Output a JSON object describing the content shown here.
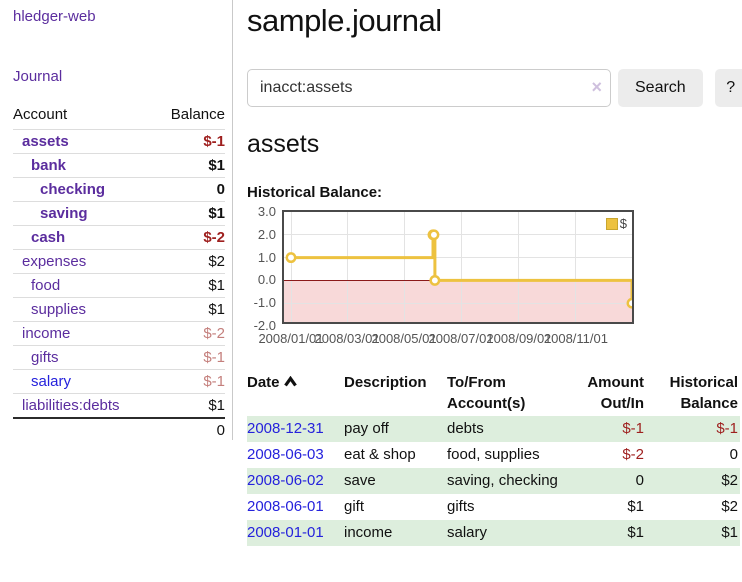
{
  "sidebar": {
    "app_title": "hledger-web",
    "nav_journal": "Journal",
    "accounts_table": {
      "headers": {
        "account": "Account",
        "balance": "Balance"
      },
      "accounts": [
        {
          "name": "assets",
          "balance": "$-1",
          "indent": 1,
          "bold": true,
          "balance_color": "negative"
        },
        {
          "name": "bank",
          "balance": "$1",
          "indent": 2,
          "bold": true,
          "balance_color": "normal"
        },
        {
          "name": "checking",
          "balance": "0",
          "indent": 3,
          "bold": true,
          "balance_color": "normal"
        },
        {
          "name": "saving",
          "balance": "$1",
          "indent": 3,
          "bold": true,
          "balance_color": "normal"
        },
        {
          "name": "cash",
          "balance": "$-2",
          "indent": 2,
          "bold": true,
          "balance_color": "negative"
        },
        {
          "name": "expenses",
          "balance": "$2",
          "indent": 1,
          "bold": false,
          "balance_color": "normal"
        },
        {
          "name": "food",
          "balance": "$1",
          "indent": 2,
          "bold": false,
          "balance_color": "normal"
        },
        {
          "name": "supplies",
          "balance": "$1",
          "indent": 2,
          "bold": false,
          "balance_color": "normal"
        },
        {
          "name": "income",
          "balance": "$-2",
          "indent": 1,
          "bold": false,
          "balance_color": "negative-muted"
        },
        {
          "name": "gifts",
          "balance": "$-1",
          "indent": 2,
          "bold": false,
          "balance_color": "negative-muted"
        },
        {
          "name": "salary",
          "balance": "$-1",
          "indent": 2,
          "bold": false,
          "balance_color": "negative-muted",
          "link_color": "blue"
        },
        {
          "name": "liabilities:debts",
          "balance": "$1",
          "indent": 1,
          "bold": false,
          "balance_color": "normal"
        }
      ],
      "total": "0"
    }
  },
  "header": {
    "title": "sample.journal"
  },
  "search": {
    "value": "inacct:assets",
    "clear_icon": "×",
    "button_label": "Search",
    "help_label": "?"
  },
  "account_view": {
    "heading": "assets",
    "chart_title": "Historical Balance:"
  },
  "chart_data": {
    "type": "line",
    "step": true,
    "title": "Historical Balance",
    "series": [
      {
        "name": "$",
        "color": "#edc240",
        "points": [
          [
            "2008-01-01",
            1
          ],
          [
            "2008-06-01",
            2
          ],
          [
            "2008-06-02",
            2
          ],
          [
            "2008-06-03",
            0
          ],
          [
            "2008-12-31",
            -1
          ]
        ]
      }
    ],
    "xrange": [
      "2008-01-01",
      "2008-12-31"
    ],
    "ylim": [
      -2,
      3
    ],
    "yticks": [
      "3.0",
      "2.0",
      "1.0",
      "0.0",
      "-1.0",
      "-2.0"
    ],
    "xticks": [
      "2008/01/01",
      "2008/03/01",
      "2008/05/01",
      "2008/07/01",
      "2008/09/01",
      "2008/11/01"
    ],
    "legend": {
      "label": "$",
      "position": "top-right"
    },
    "grid": true,
    "zero_line_color": "#8b1a1a",
    "negative_fill": "#f8d9d9"
  },
  "register": {
    "headers": [
      "Date",
      "Description",
      "To/From Account(s)",
      "Amount Out/In",
      "Historical Balance"
    ],
    "sort": {
      "column": "Date",
      "direction": "ascending"
    },
    "rows": [
      {
        "date": "2008-12-31",
        "description": "pay off",
        "accounts": "debts",
        "amount": "$-1",
        "amount_negative": true,
        "balance": "$-1",
        "balance_negative": true
      },
      {
        "date": "2008-06-03",
        "description": "eat & shop",
        "accounts": "food, supplies",
        "amount": "$-2",
        "amount_negative": true,
        "balance": "0",
        "balance_negative": false
      },
      {
        "date": "2008-06-02",
        "description": "save",
        "accounts": "saving, checking",
        "amount": "0",
        "amount_negative": false,
        "balance": "$2",
        "balance_negative": false
      },
      {
        "date": "2008-06-01",
        "description": "gift",
        "accounts": "gifts",
        "amount": "$1",
        "amount_negative": false,
        "balance": "$2",
        "balance_negative": false
      },
      {
        "date": "2008-01-01",
        "description": "income",
        "accounts": "salary",
        "amount": "$1",
        "amount_negative": false,
        "balance": "$1",
        "balance_negative": false
      }
    ]
  },
  "colors": {
    "link_purple": "#5b2d9e",
    "link_blue": "#2522dc",
    "negative_red": "#9e1f1e",
    "negative_muted": "#c47f7c",
    "row_stripe_green": "#ddeedd",
    "series_gold": "#edc240"
  }
}
